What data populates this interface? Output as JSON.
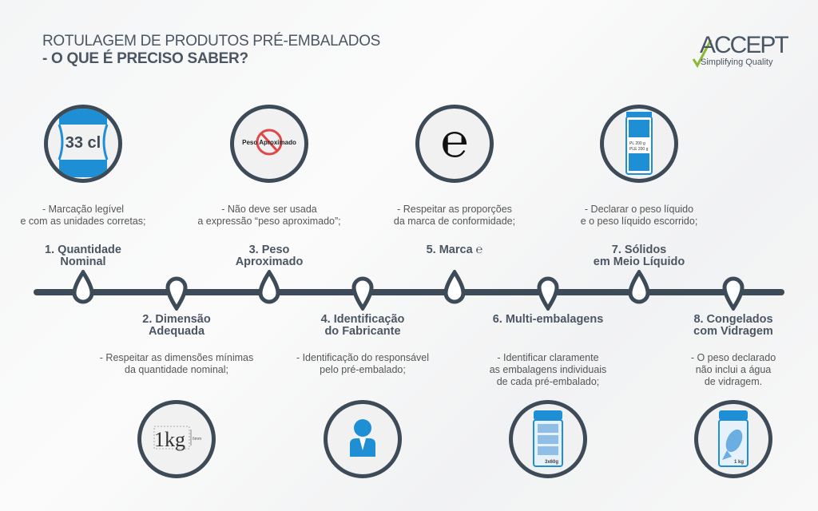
{
  "header": {
    "title_line1": "ROTULAGEM DE PRODUTOS PRÉ-EMBALADOS",
    "title_line2": "- O QUE É PRECISO SABER?"
  },
  "logo": {
    "name": "ACCEPT",
    "tagline": "Simplifying Quality"
  },
  "colors": {
    "dark": "#3d4a57",
    "blue": "#1e8fd5",
    "red": "#e04848",
    "logo_green": "#8bb832"
  },
  "steps": [
    {
      "title_line1": "1. Quantidade",
      "title_line2": "Nominal",
      "desc_line1": "- Marcação legível",
      "desc_line2": "e com as unidades corretas;",
      "desc_line3": "",
      "icon": "bottle-33cl-icon",
      "icon_text": "33 cl"
    },
    {
      "title_line1": "2. Dimensão",
      "title_line2": "Adequada",
      "desc_line1": "- Respeitar as dimensões mínimas",
      "desc_line2": "da quantidade nominal;",
      "desc_line3": "",
      "icon": "size-1kg-icon",
      "icon_text": "1kg",
      "icon_subtext": "6mm"
    },
    {
      "title_line1": "3. Peso",
      "title_line2": "Aproximado",
      "desc_line1": "- Não deve ser usada",
      "desc_line2": "a expressão “peso aproximado”;",
      "desc_line3": "",
      "icon": "prohibited-icon",
      "icon_text": "Peso Aproximado"
    },
    {
      "title_line1": "4. Identificação",
      "title_line2": "do Fabricante",
      "desc_line1": "- Identificação do responsável",
      "desc_line2": "pelo pré-embalado;",
      "desc_line3": "",
      "icon": "person-icon"
    },
    {
      "title_line1": "5. Marca ℮",
      "title_line2": "",
      "desc_line1": "- Respeitar as proporções",
      "desc_line2": "da marca de conformidade;",
      "desc_line3": "",
      "icon": "e-mark-icon",
      "icon_text": "℮"
    },
    {
      "title_line1": "6. Multi-embalagens",
      "title_line2": "",
      "desc_line1": "- Identificar claramente",
      "desc_line2": "as embalagens individuais",
      "desc_line3": "de cada pré-embalado;",
      "icon": "multipack-icon",
      "icon_text": "3x60g"
    },
    {
      "title_line1": "7. Sólidos",
      "title_line2": "em Meio Líquido",
      "desc_line1": "- Declarar o peso líquido",
      "desc_line2": "e o peso líquido escorrido;",
      "desc_line3": "",
      "icon": "jar-icon",
      "icon_text": "PL 200 g",
      "icon_subtext": "PLE 200 g"
    },
    {
      "title_line1": "8. Congelados",
      "title_line2": "com Vidragem",
      "desc_line1": "- O peso declarado",
      "desc_line2": "não inclui a água",
      "desc_line3": "de vidragem.",
      "icon": "frozen-fish-icon",
      "icon_text": "1 kg"
    }
  ]
}
